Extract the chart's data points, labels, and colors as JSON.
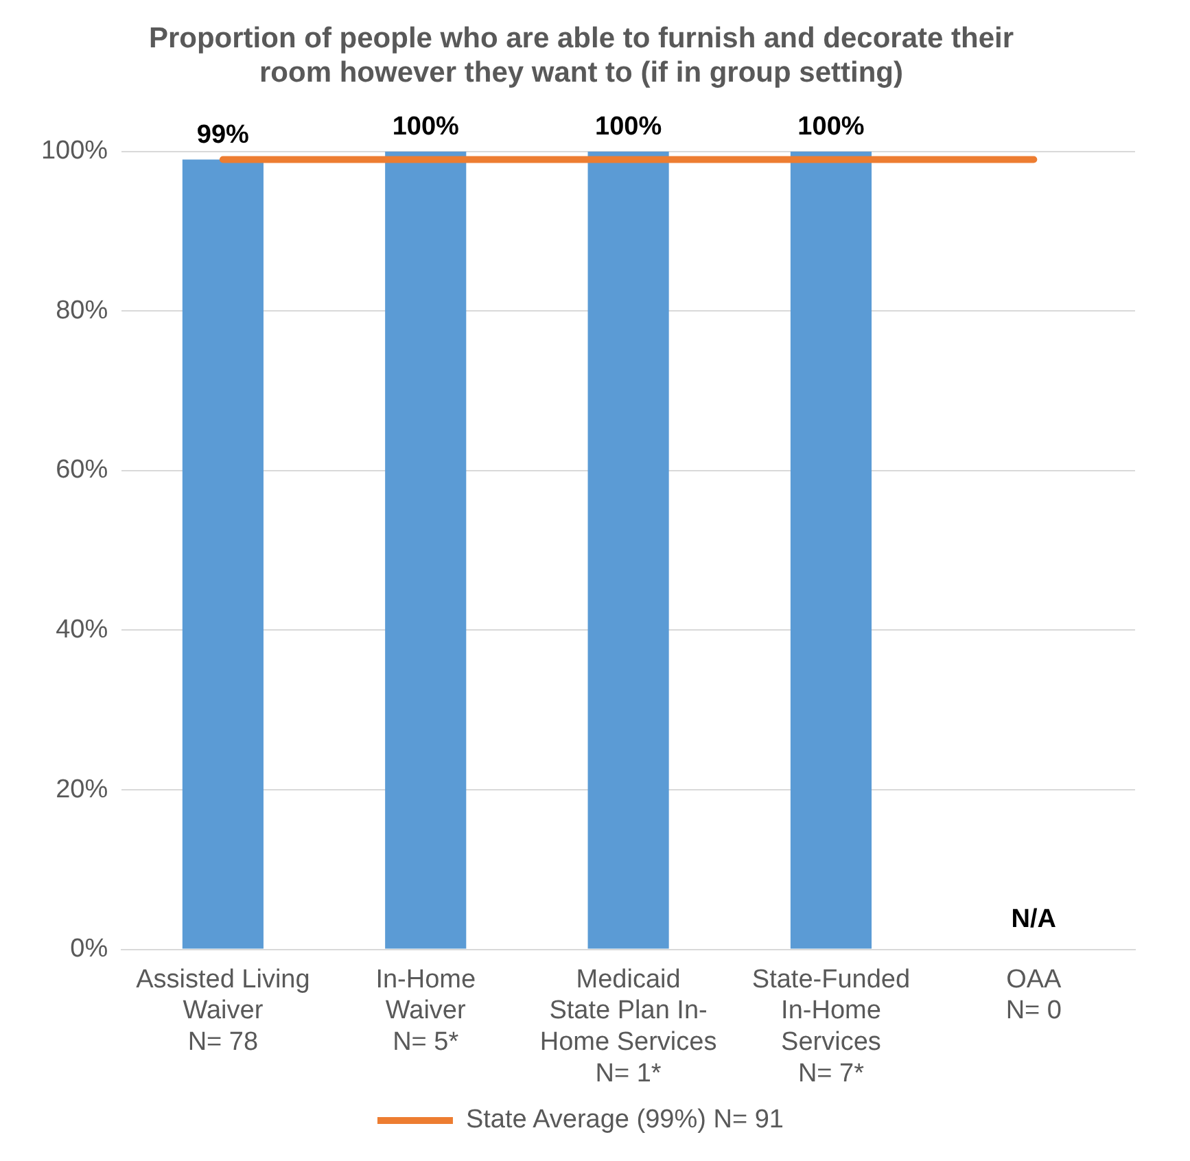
{
  "chart_data": {
    "type": "bar",
    "title": "Proportion of people who are able to furnish and decorate their room however they want to (if in group setting)",
    "categories": [
      "Assisted Living\nWaiver\nN= 78",
      "In-Home\nWaiver\nN= 5*",
      "Medicaid\nState Plan In-\nHome Services\nN= 1*",
      "State-Funded\nIn-Home\nServices\nN= 7*",
      "OAA\nN= 0"
    ],
    "values": [
      99,
      100,
      100,
      100,
      null
    ],
    "value_labels": [
      "99%",
      "100%",
      "100%",
      "100%",
      "N/A"
    ],
    "color": "#5b9bd5",
    "ylim": [
      0,
      100
    ],
    "yticks": [
      {
        "value": 0,
        "label": "0%"
      },
      {
        "value": 20,
        "label": "20%"
      },
      {
        "value": 40,
        "label": "40%"
      },
      {
        "value": 60,
        "label": "60%"
      },
      {
        "value": 80,
        "label": "80%"
      },
      {
        "value": 100,
        "label": "100%"
      }
    ],
    "grid": "y",
    "ref_lines": [
      {
        "axis": "y",
        "value": 99,
        "label": "State Average (99%) N= 91",
        "color": "#ed7d31"
      }
    ],
    "legend": "bottom"
  }
}
